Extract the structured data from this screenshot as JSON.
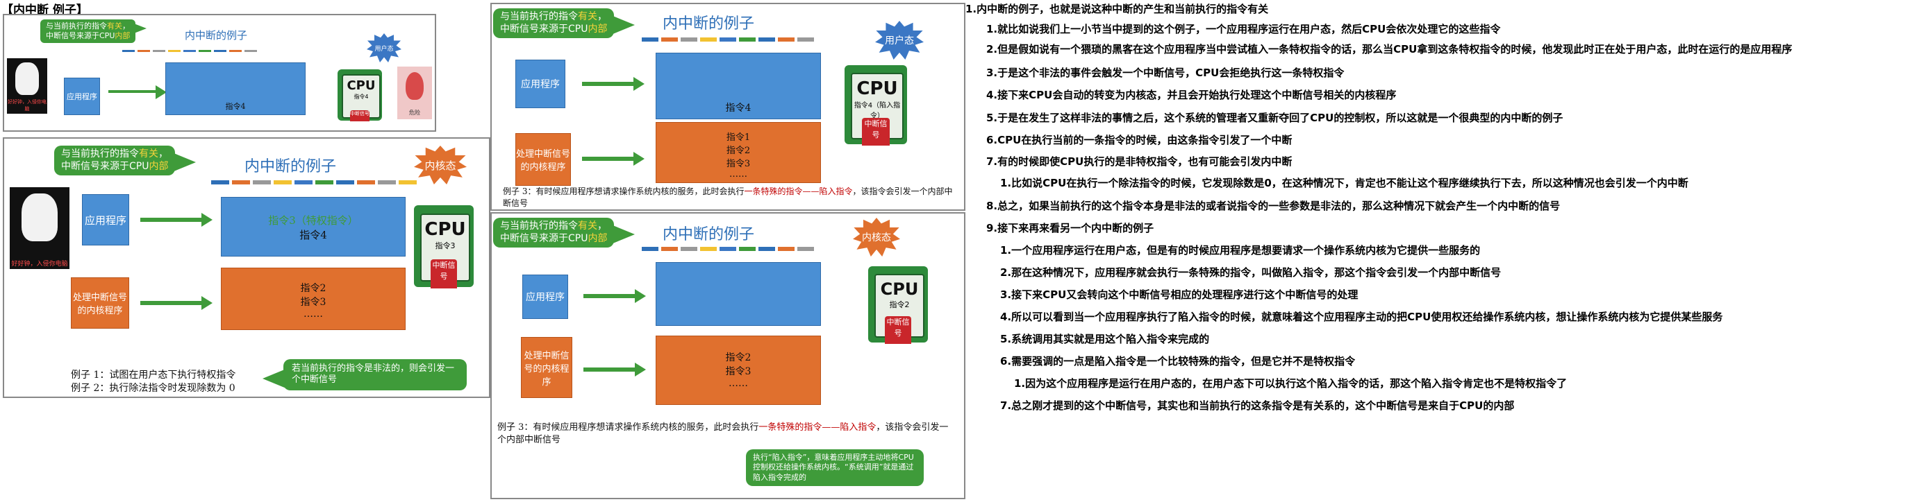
{
  "header": {
    "title": "【内中断 例子】"
  },
  "panel1": {
    "bubble": [
      "与当前执行的指令",
      "有关",
      "，",
      "中断信号来源于CPU",
      "内部"
    ],
    "title": "内中断的例子",
    "app_box": "应用程序",
    "big_box": "指令4",
    "cpu_label": "CPU",
    "cpu_instr": "指令4",
    "cpu_signal": "中断信号",
    "burst": "用户态",
    "hacker_caption": "好好钟，入侵你电脑",
    "monster_caption": "危险"
  },
  "panel2": {
    "bubble": [
      "与当前执行的指令",
      "有关",
      "，",
      "中断信号来源于CPU",
      "内部"
    ],
    "title": "内中断的例子",
    "burst": "内核态",
    "app_box": "应用程序",
    "handler_box": "处理中断信号的内核程序",
    "blue_line1": "指令3（特权指令）",
    "blue_line2": "指令4",
    "orange_lines": [
      "指令2",
      "指令3",
      "……"
    ],
    "cpu_label": "CPU",
    "cpu_instr": "指令3",
    "cpu_signal": "中断信号",
    "hacker_caption": "好好钟，入侵你电脑",
    "example1": "例子 1：试图在用户态下执行特权指令",
    "example2": "例子 2：执行除法指令时发现除数为 0",
    "bubble2": "若当前执行的指令是非法的，则会引发一个中断信号"
  },
  "panel3": {
    "bubble": [
      "与当前执行的指令",
      "有关",
      "，",
      "中断信号来源于CPU",
      "内部"
    ],
    "title": "内中断的例子",
    "burst": "用户态",
    "app_box": "应用程序",
    "handler_box": "处理中断信号的内核程序",
    "blue_line": "指令4",
    "orange_lines": [
      "指令1",
      "指令2",
      "指令3",
      "……"
    ],
    "cpu_label": "CPU",
    "cpu_instr": "指令4（陷入指令）",
    "cpu_signal": "中断信号",
    "example_prefix": "例子 3：有时候应用程序想请求操作系统内核的服务，此时会执行",
    "example_red": "一条特殊的指令——陷入指令",
    "example_suffix": "，该指令会引发一个内部中断信号"
  },
  "panel4": {
    "bubble": [
      "与当前执行的指令",
      "有关",
      "，",
      "中断信号来源于CPU",
      "内部"
    ],
    "title": "内中断的例子",
    "burst": "内核态",
    "app_box": "应用程序",
    "handler_box": "处理中断信号的内核程序",
    "orange_lines": [
      "指令2",
      "指令3",
      "……"
    ],
    "cpu_label": "CPU",
    "cpu_instr": "指令2",
    "cpu_signal": "中断信号",
    "example_prefix": "例子 3：有时候应用程序想请求操作系统内核的服务，此时会执行",
    "example_red": "一条特殊的指令——陷入指令",
    "example_suffix": "，该指令会引发一个内部中断信号",
    "bubble2": "执行“陷入指令”，意味着应用程序主动地将CPU控制权还给操作系统内核。“系统调用”就是通过陷入指令完成的"
  },
  "notes": [
    "1.内中断的例子，也就是说这种中断的产生和当前执行的指令有关",
    "1.就比如说我们上一小节当中提到的这个例子，一个应用程序运行在用户态，然后CPU会依次处理它的这些指令",
    "2.但是假如说有一个猥琐的黑客在这个应用程序当中尝试植入一条特权指令的话，那么当CPU拿到这条特权指令的时候，他发现此时正在处于用户态，此时在运行的是应用程序",
    "3.于是这个非法的事件会触发一个中断信号，CPU会拒绝执行这一条特权指令",
    "4.接下来CPU会自动的转变为内核态，并且会开始执行处理这个中断信号相关的内核程序",
    "5.于是在发生了这样非法的事情之后，这个系统的管理者又重新夺回了CPU的控制权，所以这就是一个很典型的内中断的例子",
    "6.CPU在执行当前的一条指令的时候，由这条指令引发了一个中断",
    "7.有的时候即使CPU执行的是非特权指令，也有可能会引发内中断",
    "1.比如说CPU在执行一个除法指令的时候，它发现除数是0，在这种情况下，肯定也不能让这个程序继续执行下去，所以这种情况也会引发一个内中断",
    "8.总之，如果当前执行的这个指令本身是非法的或者说指令的一些参数是非法的，那么这种情况下就会产生一个内中断的信号",
    "9.接下来再来看另一个内中断的例子",
    "1.一个应用程序运行在用户态，但是有的时候应用程序是想要请求一个操作系统内核为它提供一些服务的",
    "2.那在这种情况下，应用程序就会执行一条特殊的指令，叫做陷入指令，那这个指令会引发一个内部中断信号",
    "3.接下来CPU又会转向这个中断信号相应的处理程序进行这个中断信号的处理",
    "4.所以可以看到当一个应用程序执行了陷入指令的时候，就意味着这个应用程序主动的把CPU使用权还给操作系统内核，想让操作系统内核为它提供某些服务",
    "5.系统调用其实就是用这个陷入指令来完成的",
    "6.需要强调的一点是陷入指令是一个比较特殊的指令，但是它并不是特权指令",
    "1.因为这个应用程序是运行在用户态的，在用户态下可以执行这个陷入指令的话，那这个陷入指令肯定也不是特权指令了",
    "7.总之刚才提到的这个中断信号，其实也和当前执行的这条指令是有关系的，这个中断信号是来自于CPU的内部"
  ]
}
